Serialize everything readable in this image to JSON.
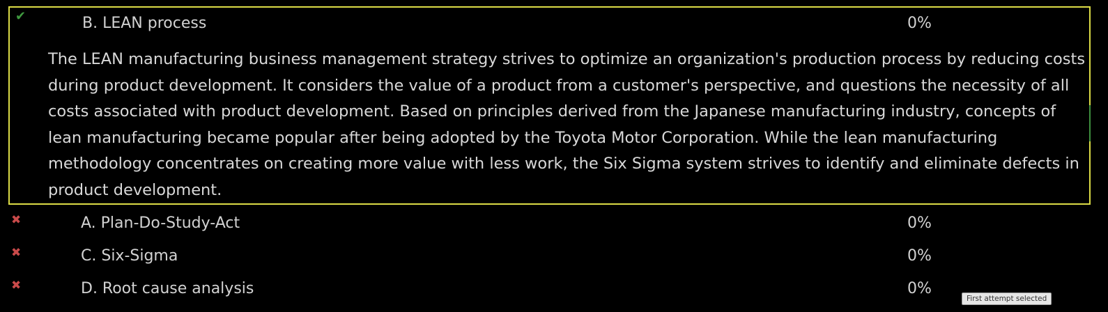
{
  "answers": [
    {
      "status_icon": "✔",
      "label": "B. LEAN process",
      "percent": "0%",
      "feedback": "The LEAN manufacturing business management strategy strives to optimize an organization's production process by reducing costs during product development. It considers the value of a product from a customer's perspective, and questions the necessity of all costs associated with product development. Based on principles derived from the Japanese manufacturing industry, concepts of lean manufacturing became popular after being adopted by the Toyota Motor Corporation. While the lean manufacturing methodology concentrates on creating more value with less work, the Six Sigma system strives to identify and eliminate defects in product development."
    },
    {
      "status_icon": "✖",
      "label": "A. Plan-Do-Study-Act",
      "percent": "0%"
    },
    {
      "status_icon": "✖",
      "label": "C. Six-Sigma",
      "percent": "0%"
    },
    {
      "status_icon": "✖",
      "label": "D. Root cause analysis",
      "percent": "0%"
    }
  ],
  "tooltip": "First attempt selected",
  "colors": {
    "correct_icon": "#3f9a3f",
    "incorrect_icon": "#c94a4a",
    "highlight_border": "#dcdc46",
    "background": "#000000"
  }
}
